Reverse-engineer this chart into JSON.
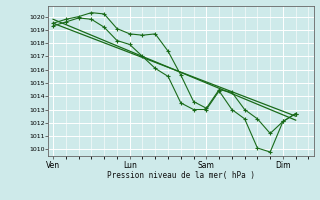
{
  "title": "Pression niveau de la mer( hPa )",
  "ylim": [
    1009.5,
    1020.8
  ],
  "yticks": [
    1010,
    1011,
    1012,
    1013,
    1014,
    1015,
    1016,
    1017,
    1018,
    1019,
    1020
  ],
  "bg_color": "#ceeaea",
  "grid_color": "#ffffff",
  "line_color": "#1a6b1a",
  "xtick_labels": [
    "Ven",
    "Lun",
    "Sam",
    "Dim"
  ],
  "xtick_positions": [
    0.0,
    3.0,
    6.0,
    9.0
  ],
  "xlim": [
    -0.2,
    10.2
  ],
  "line1_x": [
    0.0,
    0.5,
    1.0,
    1.5,
    2.0,
    2.5,
    3.0,
    3.5,
    4.0,
    4.5,
    5.0,
    5.5,
    6.0,
    6.5,
    7.0,
    7.5,
    8.0,
    8.5,
    9.0,
    9.5
  ],
  "line1_y": [
    1019.5,
    1019.8,
    1020.0,
    1020.3,
    1020.2,
    1019.1,
    1018.7,
    1018.6,
    1018.7,
    1017.4,
    1015.6,
    1013.6,
    1013.1,
    1014.5,
    1014.3,
    1013.0,
    1012.3,
    1011.2,
    1012.1,
    1012.7
  ],
  "line2_x": [
    0.0,
    0.5,
    1.0,
    1.5,
    2.0,
    2.5,
    3.0,
    3.5,
    4.0,
    4.5,
    5.0,
    5.5,
    6.0,
    6.5,
    7.0,
    7.5,
    8.0,
    8.5,
    9.0,
    9.5
  ],
  "line2_y": [
    1019.3,
    1019.6,
    1019.9,
    1019.8,
    1019.2,
    1018.2,
    1017.9,
    1017.0,
    1016.1,
    1015.5,
    1013.5,
    1013.0,
    1013.0,
    1014.4,
    1013.0,
    1012.3,
    1010.1,
    1009.8,
    1012.1,
    1012.7
  ],
  "line3_x": [
    0.0,
    9.5
  ],
  "line3_y": [
    1019.5,
    1012.5
  ],
  "line4_x": [
    0.0,
    9.5
  ],
  "line4_y": [
    1019.8,
    1012.2
  ]
}
